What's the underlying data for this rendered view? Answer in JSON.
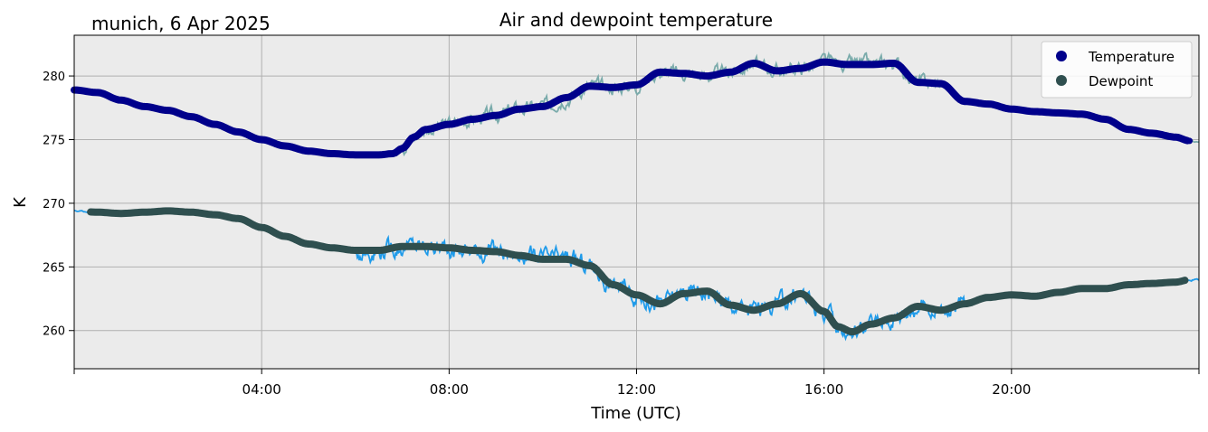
{
  "chart_data": {
    "type": "line",
    "title": "Air and dewpoint temperature",
    "subtitle": "munich, 6 Apr 2025",
    "xlabel": "Time (UTC)",
    "ylabel": "K",
    "x_unit": "hours UTC",
    "xlim": [
      0,
      24
    ],
    "ylim": [
      257,
      283.2
    ],
    "grid": true,
    "legend_position": "top-right",
    "x_ticks": [
      {
        "value": 4,
        "label": "04:00"
      },
      {
        "value": 8,
        "label": "08:00"
      },
      {
        "value": 12,
        "label": "12:00"
      },
      {
        "value": 16,
        "label": "16:00"
      },
      {
        "value": 20,
        "label": "20:00"
      }
    ],
    "y_ticks": [
      {
        "value": 260,
        "label": "260"
      },
      {
        "value": 265,
        "label": "265"
      },
      {
        "value": 270,
        "label": "270"
      },
      {
        "value": 275,
        "label": "275"
      },
      {
        "value": 280,
        "label": "280"
      }
    ],
    "series": [
      {
        "name": "Temperature",
        "color": "#00008b",
        "raw_color": "#7aabab",
        "legend_color": "#00008b",
        "x": [
          0.0,
          0.5,
          1.0,
          1.5,
          2.0,
          2.5,
          3.0,
          3.5,
          4.0,
          4.5,
          5.0,
          5.5,
          6.0,
          6.5,
          6.8,
          7.0,
          7.25,
          7.5,
          8.0,
          8.5,
          9.0,
          9.5,
          10.0,
          10.5,
          11.0,
          11.5,
          12.0,
          12.5,
          13.0,
          13.5,
          14.0,
          14.5,
          15.0,
          15.5,
          16.0,
          16.5,
          17.0,
          17.5,
          18.0,
          18.5,
          19.0,
          19.5,
          20.0,
          20.5,
          21.0,
          21.5,
          22.0,
          22.5,
          23.0,
          23.5,
          23.8
        ],
        "values": [
          278.9,
          278.7,
          278.1,
          277.6,
          277.3,
          276.8,
          276.2,
          275.6,
          275.0,
          274.5,
          274.1,
          273.9,
          273.8,
          273.8,
          273.9,
          274.3,
          275.2,
          275.8,
          276.2,
          276.6,
          276.9,
          277.4,
          277.6,
          278.3,
          279.2,
          279.1,
          279.3,
          280.3,
          280.2,
          280.0,
          280.3,
          281.0,
          280.4,
          280.6,
          281.1,
          280.9,
          280.9,
          281.0,
          279.5,
          279.4,
          278.0,
          277.8,
          277.4,
          277.2,
          277.1,
          277.0,
          276.6,
          275.8,
          275.5,
          275.2,
          274.9
        ]
      },
      {
        "name": "Dewpoint",
        "color": "#2f4f4f",
        "raw_color": "#1f9bea",
        "legend_color": "#2f4f4f",
        "x": [
          0.0,
          0.5,
          1.0,
          1.5,
          2.0,
          2.5,
          3.0,
          3.5,
          4.0,
          4.5,
          5.0,
          5.5,
          6.0,
          6.5,
          7.0,
          7.5,
          8.0,
          8.5,
          9.0,
          9.5,
          10.0,
          10.5,
          11.0,
          11.5,
          12.0,
          12.5,
          13.0,
          13.5,
          14.0,
          14.5,
          15.0,
          15.5,
          16.0,
          16.3,
          16.6,
          17.0,
          17.5,
          18.0,
          18.5,
          19.0,
          19.5,
          20.0,
          20.5,
          21.0,
          21.5,
          22.0,
          22.5,
          23.0,
          23.5,
          23.8
        ],
        "values": [
          269.4,
          269.3,
          269.2,
          269.3,
          269.4,
          269.3,
          269.1,
          268.8,
          268.1,
          267.4,
          266.8,
          266.5,
          266.3,
          266.3,
          266.6,
          266.6,
          266.5,
          266.3,
          266.2,
          265.9,
          265.6,
          265.6,
          265.1,
          263.6,
          262.8,
          262.1,
          262.9,
          263.1,
          262.0,
          261.6,
          262.1,
          262.9,
          261.5,
          260.3,
          259.9,
          260.5,
          261.0,
          261.9,
          261.6,
          262.1,
          262.6,
          262.8,
          262.7,
          263.0,
          263.3,
          263.3,
          263.6,
          263.7,
          263.8,
          264.0
        ]
      }
    ]
  },
  "colors": {
    "plot_background": "#ebebeb",
    "grid": "#b0b0b0"
  }
}
